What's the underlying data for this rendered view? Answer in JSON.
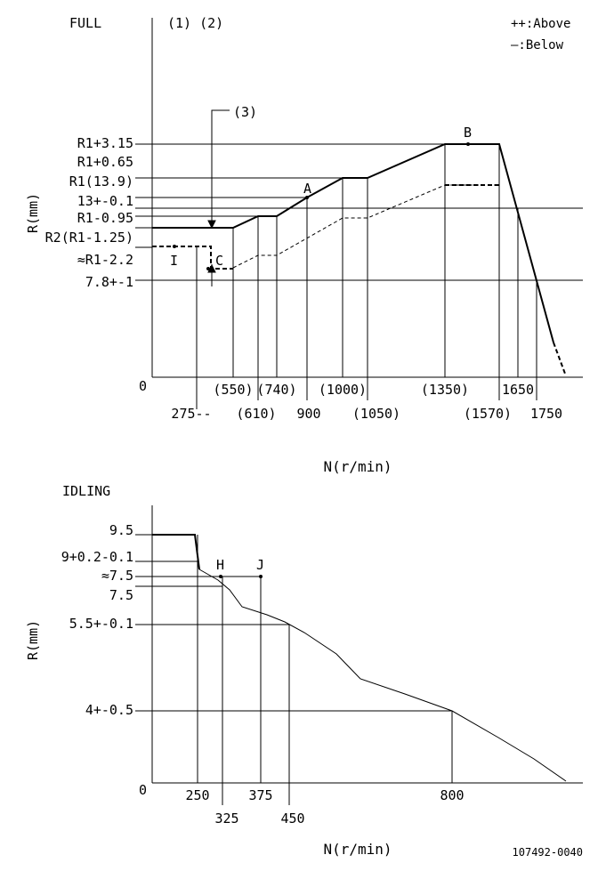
{
  "full": {
    "title": "FULL",
    "notes": "(1) (2)",
    "legend_above": "++:Above",
    "legend_below": "—:Below",
    "callout_3": "(3)",
    "y_axis_label": "R(mm)",
    "x_axis_label": "N(r/min)",
    "origin": "0",
    "y_labels": [
      "R1+3.15",
      "R1+0.65",
      "R1(13.9)",
      "13+-0.1",
      "R1-0.95",
      "R2(R1-1.25)",
      "≈R1-2.2",
      "7.8+-1"
    ],
    "x_labels_upper": [
      "(550)",
      "(740)",
      "(1000)",
      "(1350)",
      "1650"
    ],
    "x_labels_lower": [
      "275--",
      "(610)",
      "900",
      "(1050)",
      "(1570)",
      "1750"
    ],
    "point_labels": [
      "A",
      "B",
      "C",
      "I"
    ]
  },
  "idling": {
    "title": "IDLING",
    "y_axis_label": "R(mm)",
    "x_axis_label": "N(r/min)",
    "origin": "0",
    "y_labels": [
      "9.5",
      "9+0.2-0.1",
      "≈7.5",
      "7.5",
      "5.5+-0.1",
      "4+-0.5"
    ],
    "x_labels_upper": [
      "250",
      "375",
      "800"
    ],
    "x_labels_lower": [
      "325",
      "450"
    ],
    "point_labels": [
      "H",
      "J"
    ]
  },
  "drawing_number": "107492-0040"
}
